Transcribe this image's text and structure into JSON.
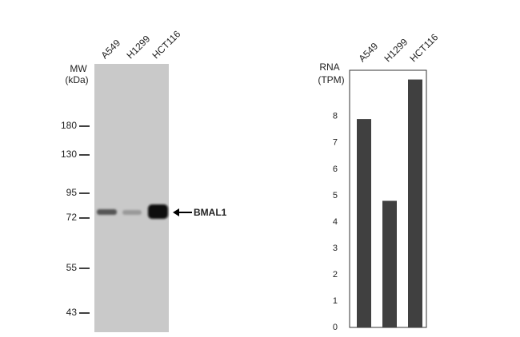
{
  "blot": {
    "lanes": [
      "A549",
      "H1299",
      "HCT116"
    ],
    "mw_label": "MW",
    "mw_unit": "(kDa)",
    "markers": [
      "180",
      "130",
      "95",
      "72",
      "55",
      "43"
    ],
    "band_label": "BMAL1"
  },
  "chart_data": {
    "type": "bar",
    "y_label": [
      "RNA",
      "(TPM)"
    ],
    "categories": [
      "A549",
      "H1299",
      "HCT116"
    ],
    "values": [
      7.9,
      4.8,
      9.4
    ],
    "color": "#404040",
    "ylim": [
      0,
      9.75
    ],
    "yticks": [
      0,
      1,
      2,
      3,
      4,
      5,
      6,
      7,
      8
    ]
  }
}
